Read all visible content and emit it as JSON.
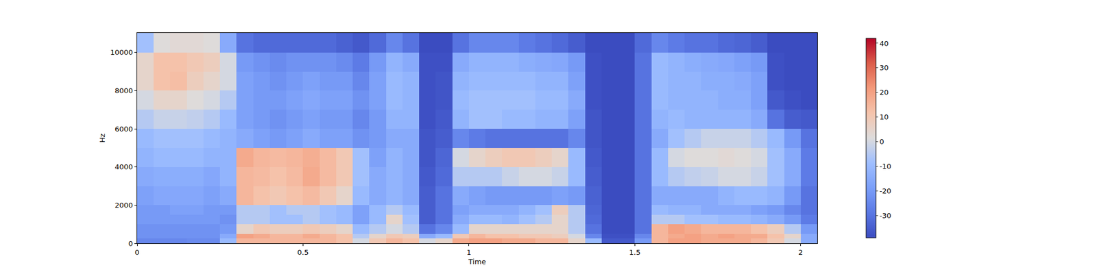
{
  "chart_data": {
    "type": "heatmap",
    "x_label": "Time",
    "y_label": "Hz",
    "xlim": [
      0,
      2.05
    ],
    "ylim": [
      0,
      11025
    ],
    "xticks": [
      0,
      0.5,
      1,
      1.5,
      2
    ],
    "yticks": [
      0,
      2000,
      4000,
      6000,
      8000,
      10000
    ],
    "time_edges": [
      0,
      0.05,
      0.1,
      0.15,
      0.2,
      0.25,
      0.3,
      0.35,
      0.4,
      0.45,
      0.5,
      0.55,
      0.6,
      0.65,
      0.7,
      0.75,
      0.8,
      0.85,
      0.9,
      0.95,
      1.0,
      1.05,
      1.1,
      1.15,
      1.2,
      1.25,
      1.3,
      1.35,
      1.4,
      1.45,
      1.5,
      1.55,
      1.6,
      1.65,
      1.7,
      1.75,
      1.8,
      1.85,
      1.9,
      1.95,
      2.0,
      2.05
    ],
    "frequency_edges": [
      0,
      250,
      500,
      1000,
      1500,
      2000,
      3000,
      4000,
      5000,
      6000,
      7000,
      8000,
      9000,
      10000,
      11025
    ],
    "cells": [
      [
        -25,
        -25,
        -25,
        -24,
        -24,
        -10,
        15,
        15,
        15,
        15,
        15,
        15,
        12,
        0,
        10,
        15,
        12,
        0,
        5,
        18,
        20,
        20,
        18,
        18,
        15,
        15,
        5,
        -10,
        -36,
        -36,
        -20,
        15,
        20,
        20,
        18,
        18,
        18,
        15,
        10,
        0,
        -15
      ],
      [
        -22,
        -22,
        -22,
        -22,
        -22,
        -15,
        20,
        18,
        15,
        15,
        18,
        15,
        12,
        -5,
        5,
        10,
        8,
        -15,
        -10,
        10,
        15,
        12,
        12,
        10,
        10,
        8,
        0,
        -25,
        -38,
        -38,
        -25,
        15,
        18,
        20,
        18,
        20,
        18,
        18,
        12,
        5,
        -15
      ],
      [
        -22,
        -22,
        -22,
        -22,
        -22,
        -20,
        5,
        10,
        8,
        8,
        10,
        8,
        5,
        -10,
        -5,
        0,
        -5,
        -30,
        -25,
        -10,
        5,
        5,
        5,
        5,
        5,
        5,
        -5,
        -30,
        -39,
        -39,
        -30,
        15,
        20,
        18,
        15,
        15,
        15,
        12,
        8,
        -5,
        -20
      ],
      [
        -20,
        -20,
        -20,
        -20,
        -20,
        -22,
        -5,
        -5,
        -8,
        -8,
        -5,
        -8,
        -10,
        -18,
        -10,
        5,
        -8,
        -35,
        -30,
        -15,
        -10,
        -10,
        -12,
        -8,
        -5,
        5,
        -5,
        -32,
        -39,
        -39,
        -30,
        -5,
        -5,
        -8,
        -8,
        -10,
        -10,
        -12,
        -15,
        -20,
        -28
      ],
      [
        -20,
        -20,
        -18,
        -18,
        -20,
        -20,
        -5,
        -5,
        -8,
        -5,
        -5,
        -8,
        -10,
        -18,
        -10,
        -5,
        -10,
        -35,
        -30,
        -18,
        -15,
        -15,
        -15,
        -12,
        -8,
        8,
        -5,
        -33,
        -39,
        -39,
        -30,
        -10,
        -12,
        -12,
        -15,
        -15,
        -15,
        -18,
        -20,
        -25,
        -30
      ],
      [
        -18,
        -16,
        -16,
        -16,
        -18,
        -15,
        15,
        12,
        10,
        12,
        14,
        10,
        5,
        -10,
        -15,
        -12,
        -15,
        -35,
        -30,
        -15,
        -18,
        -20,
        -20,
        -20,
        -20,
        -18,
        -20,
        -34,
        -39,
        -39,
        -30,
        -15,
        -15,
        -15,
        -15,
        -12,
        -10,
        -10,
        -12,
        -20,
        -30
      ],
      [
        -15,
        -14,
        -14,
        -14,
        -16,
        -12,
        15,
        14,
        12,
        14,
        18,
        14,
        10,
        -8,
        -15,
        -12,
        -15,
        -36,
        -32,
        -5,
        -5,
        -5,
        -2,
        0,
        0,
        -2,
        -10,
        -35,
        -39,
        -39,
        -30,
        -10,
        -5,
        -3,
        -2,
        0,
        0,
        -2,
        -8,
        -15,
        -28
      ],
      [
        -12,
        -10,
        -10,
        -10,
        -12,
        -12,
        18,
        15,
        14,
        15,
        17,
        14,
        10,
        -8,
        -18,
        -12,
        -15,
        -37,
        -33,
        0,
        5,
        8,
        10,
        10,
        8,
        5,
        -10,
        -36,
        -39,
        -39,
        -30,
        -10,
        0,
        2,
        2,
        3,
        2,
        0,
        -8,
        -15,
        -28
      ],
      [
        -10,
        -8,
        -8,
        -8,
        -10,
        -12,
        -15,
        -18,
        -20,
        -18,
        -15,
        -18,
        -18,
        -22,
        -20,
        -15,
        -15,
        -37,
        -35,
        -25,
        -28,
        -30,
        -30,
        -30,
        -30,
        -30,
        -25,
        -37,
        -39,
        -39,
        -30,
        -15,
        -8,
        -5,
        -2,
        -2,
        -2,
        -5,
        -10,
        -20,
        -30
      ],
      [
        -5,
        -2,
        -2,
        -3,
        -5,
        -10,
        -18,
        -20,
        -22,
        -20,
        -18,
        -20,
        -20,
        -25,
        -20,
        -12,
        -12,
        -38,
        -36,
        -12,
        -8,
        -8,
        -10,
        -10,
        -12,
        -12,
        -18,
        -37,
        -39,
        -39,
        -30,
        -12,
        -10,
        -12,
        -12,
        -12,
        -12,
        -15,
        -30,
        -35,
        -36
      ],
      [
        0,
        5,
        5,
        2,
        0,
        -5,
        -18,
        -20,
        -20,
        -18,
        -16,
        -18,
        -18,
        -22,
        -18,
        -10,
        -12,
        -38,
        -37,
        -10,
        -8,
        -8,
        -8,
        -8,
        -10,
        -10,
        -15,
        -38,
        -39,
        -39,
        -30,
        -10,
        -12,
        -12,
        -12,
        -14,
        -14,
        -18,
        -36,
        -38,
        -39
      ],
      [
        5,
        12,
        13,
        8,
        5,
        0,
        -18,
        -20,
        -22,
        -20,
        -18,
        -20,
        -20,
        -25,
        -18,
        -10,
        -12,
        -38,
        -37,
        -12,
        -10,
        -10,
        -10,
        -10,
        -12,
        -12,
        -18,
        -38,
        -39,
        -39,
        -30,
        -10,
        -12,
        -12,
        -14,
        -14,
        -15,
        -18,
        -38,
        -39,
        -39
      ],
      [
        5,
        12,
        12,
        10,
        8,
        0,
        -20,
        -22,
        -24,
        -22,
        -22,
        -22,
        -24,
        -28,
        -20,
        -12,
        -15,
        -38,
        -38,
        -15,
        -12,
        -12,
        -12,
        -14,
        -15,
        -16,
        -20,
        -38,
        -39,
        -39,
        -30,
        -10,
        -12,
        -14,
        -15,
        -16,
        -18,
        -20,
        -38,
        -39,
        -39
      ],
      [
        -8,
        2,
        3,
        3,
        2,
        -15,
        -30,
        -32,
        -32,
        -32,
        -32,
        -32,
        -34,
        -36,
        -32,
        -25,
        -30,
        -39,
        -39,
        -30,
        -25,
        -25,
        -25,
        -28,
        -30,
        -32,
        -35,
        -39,
        -39,
        -39,
        -32,
        -25,
        -28,
        -30,
        -30,
        -32,
        -33,
        -35,
        -39,
        -39,
        -39
      ]
    ],
    "color_range": [
      -39,
      42
    ],
    "color_ticks": [
      -30,
      -20,
      -10,
      0,
      10,
      20,
      30,
      40
    ]
  }
}
